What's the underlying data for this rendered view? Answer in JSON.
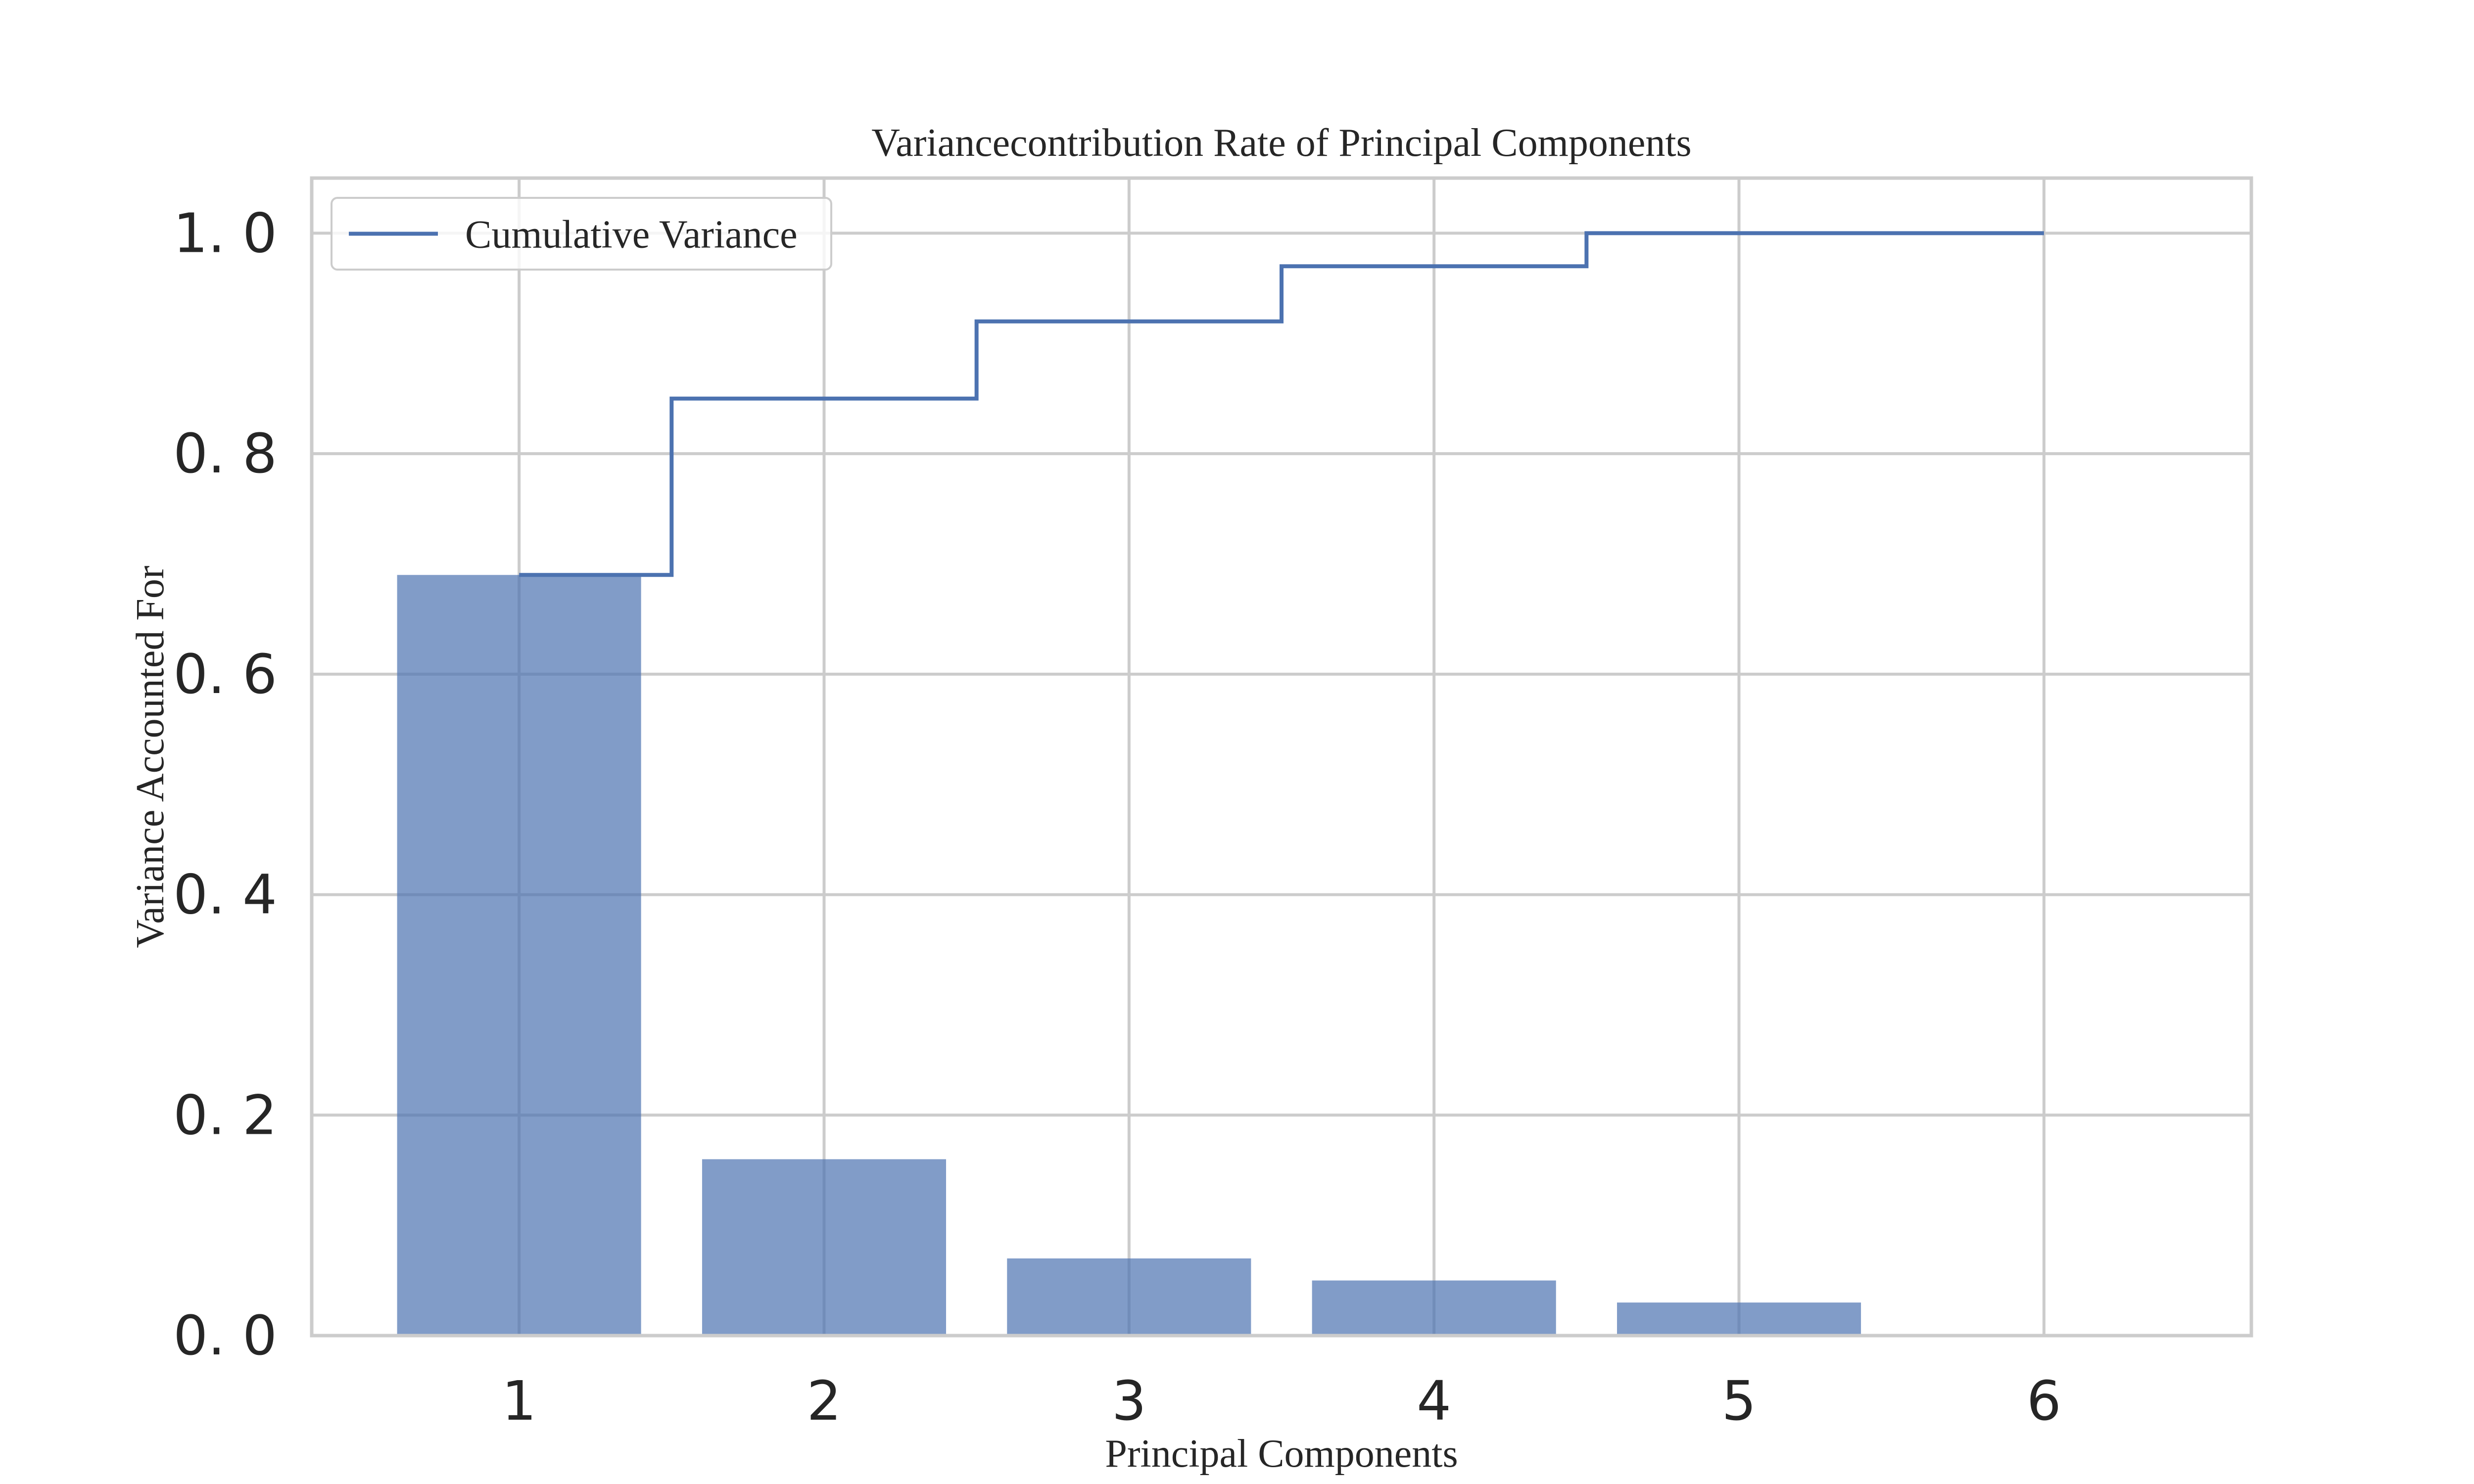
{
  "chart_data": {
    "type": "bar",
    "title": "Variancecontribution Rate of Principal Components",
    "xlabel": "Principal Components",
    "ylabel": "Variance Accounted For",
    "categories": [
      "1",
      "2",
      "3",
      "4",
      "5",
      "6"
    ],
    "x": [
      1,
      2,
      3,
      4,
      5,
      6
    ],
    "series": [
      {
        "kind": "bar",
        "values": [
          0.69,
          0.16,
          0.07,
          0.05,
          0.03,
          0.0
        ]
      },
      {
        "kind": "step",
        "name": "Cumulative Variance",
        "values": [
          0.69,
          0.85,
          0.92,
          0.97,
          1.0,
          1.0
        ]
      }
    ],
    "xlim": [
      0.32,
      6.68
    ],
    "ylim": [
      0.0,
      1.05
    ],
    "yticks": [
      0.0,
      0.2,
      0.4,
      0.6,
      0.8,
      1.0
    ],
    "ytick_labels": [
      "0. 0",
      "0. 2",
      "0. 4",
      "0. 6",
      "0. 8",
      "1. 0"
    ],
    "xtick_labels": [
      "1",
      "2",
      "3",
      "4",
      "5",
      "6"
    ],
    "grid": true,
    "legend": {
      "placement": "top-left",
      "entries": [
        "Cumulative Variance"
      ]
    },
    "colors": {
      "bar": "#4c72b0",
      "line": "#4c72b0",
      "grid": "#cccccc"
    }
  }
}
